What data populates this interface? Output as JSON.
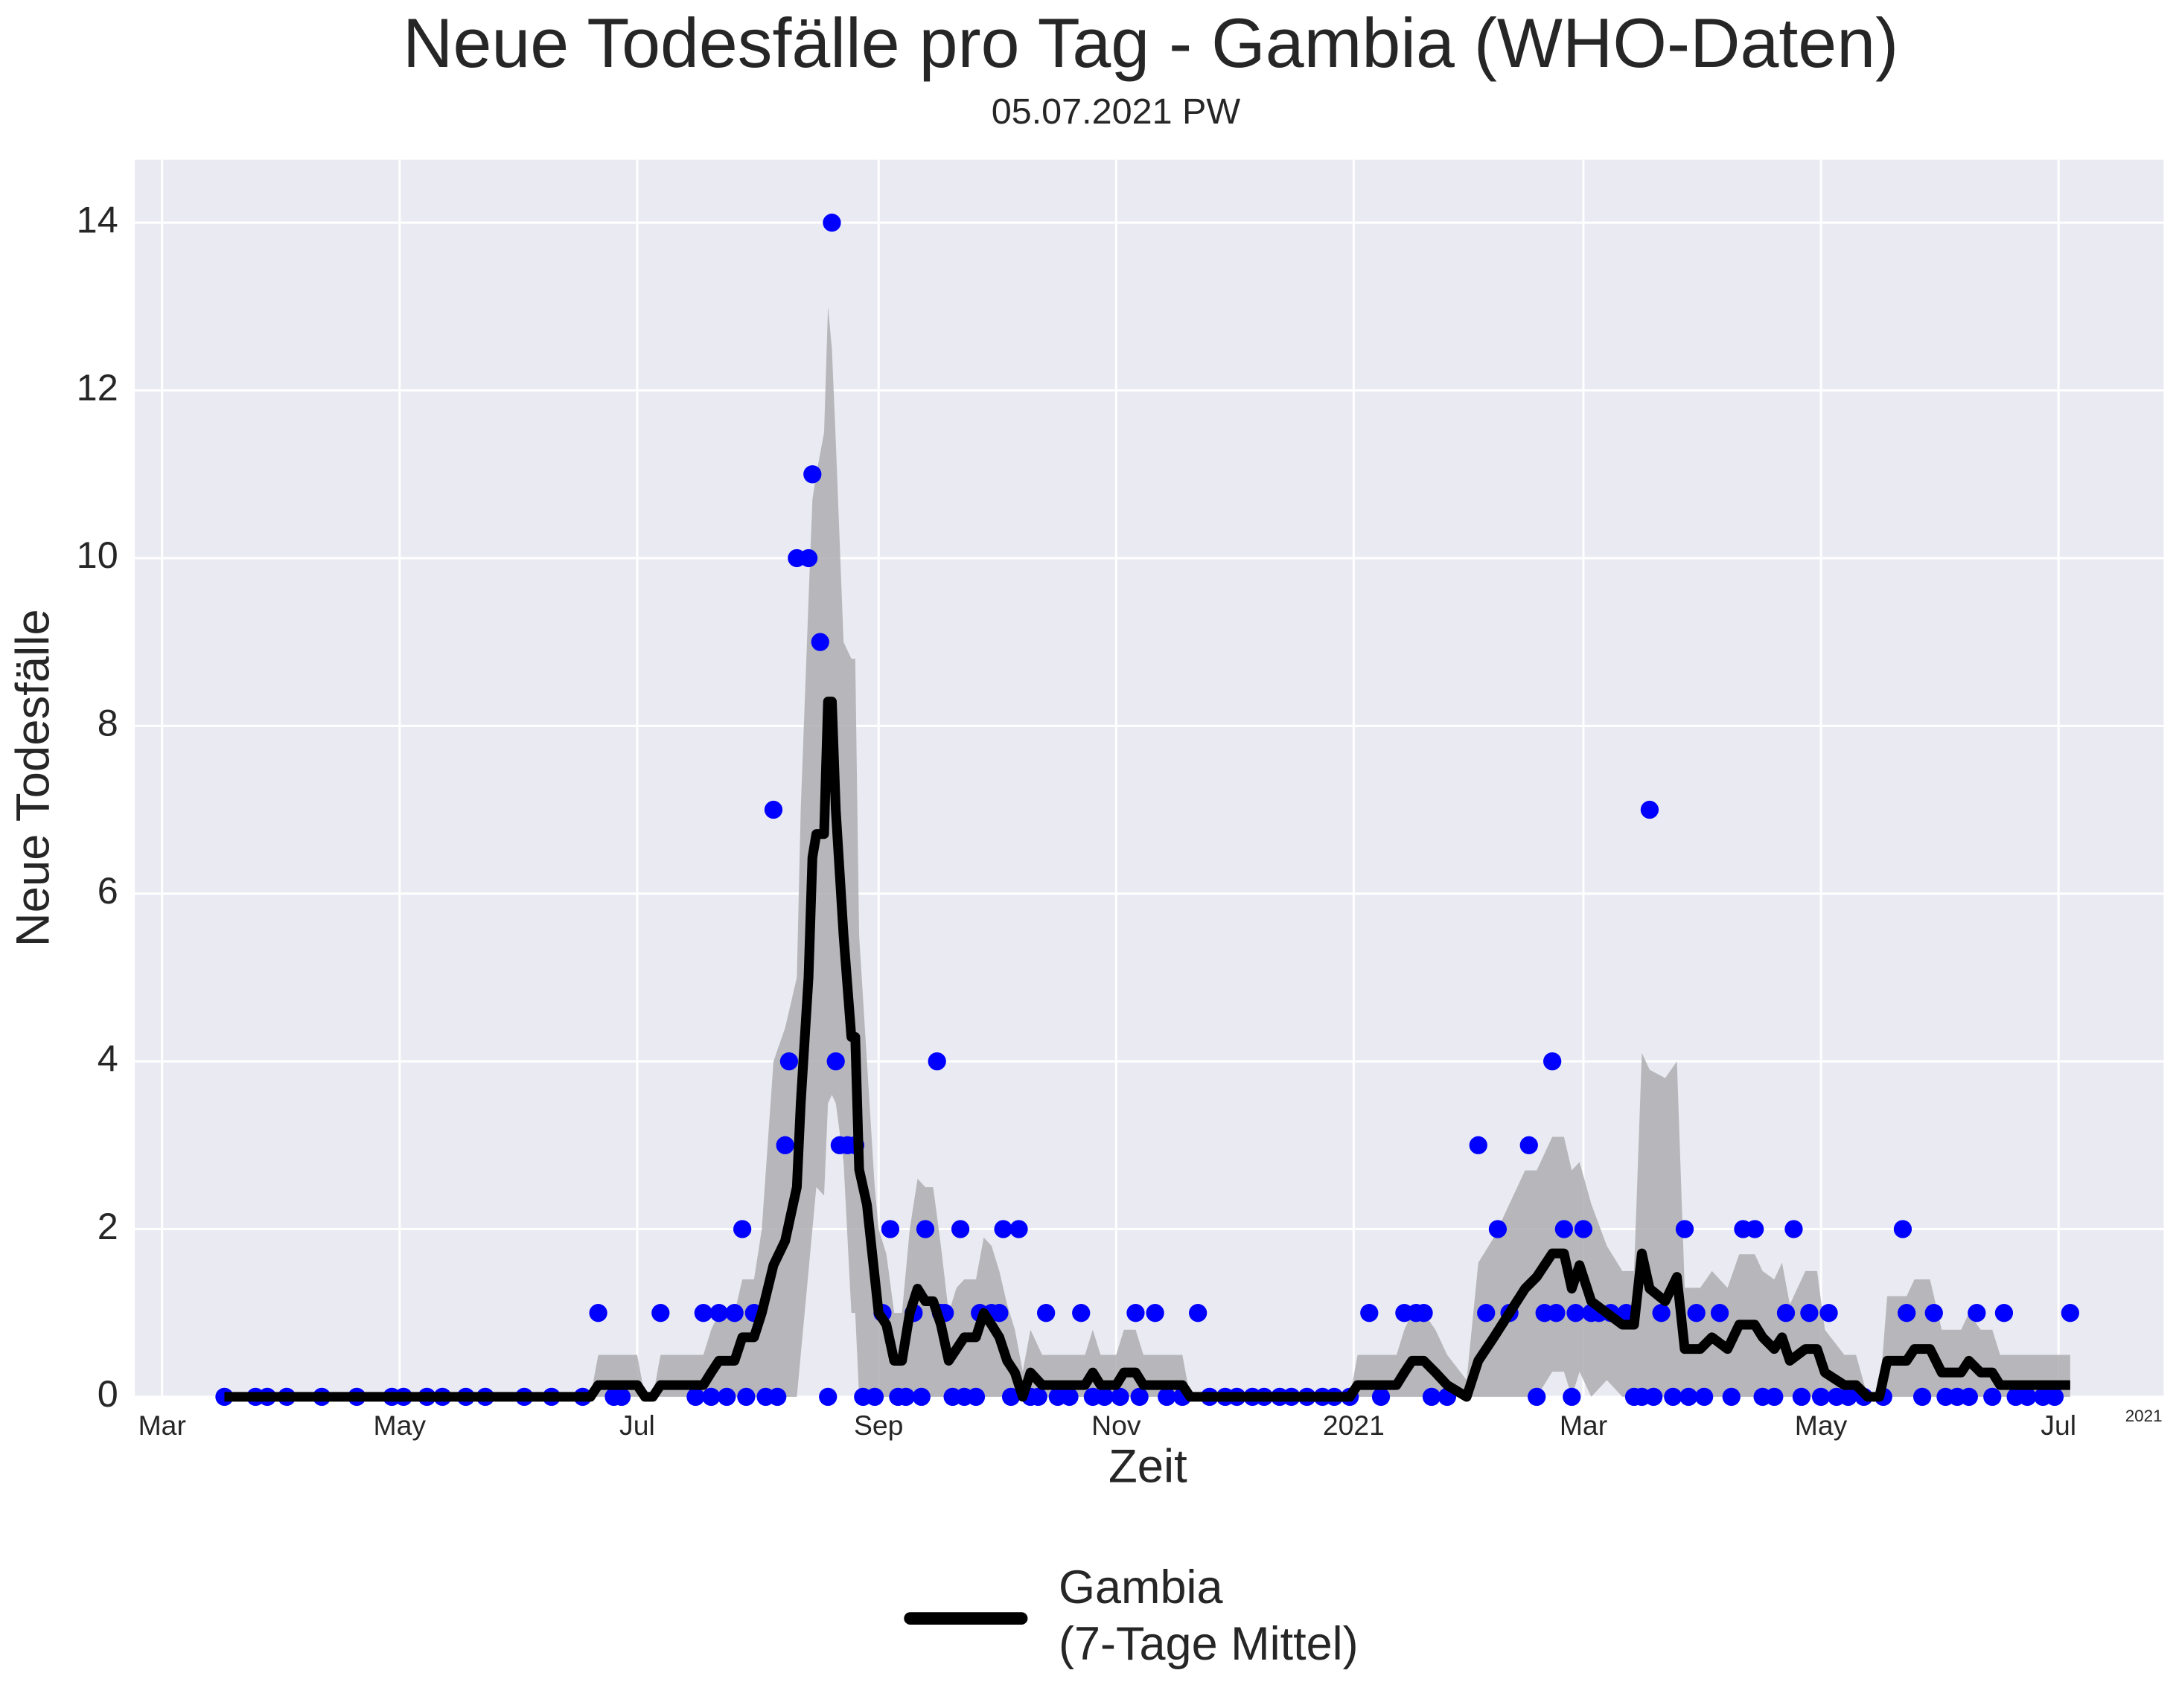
{
  "chart_data": {
    "type": "line",
    "title": "Neue Todesfälle pro Tag - Gambia (WHO-Daten)",
    "subtitle": "05.07.2021 PW",
    "x_label": "Zeit",
    "y_label": "Neue Todesfälle",
    "x_offset_label": "2021",
    "xlim": [
      -7,
      514
    ],
    "xticks": [
      {
        "value": 0,
        "label": "Mar"
      },
      {
        "value": 61,
        "label": "May"
      },
      {
        "value": 122,
        "label": "Jul"
      },
      {
        "value": 184,
        "label": "Sep"
      },
      {
        "value": 245,
        "label": "Nov"
      },
      {
        "value": 306,
        "label": "2021"
      },
      {
        "value": 365,
        "label": "Mar"
      },
      {
        "value": 426,
        "label": "May"
      },
      {
        "value": 487,
        "label": "Jul"
      }
    ],
    "ylim": [
      0,
      14.75
    ],
    "yticks": [
      0,
      2,
      4,
      6,
      8,
      10,
      12,
      14
    ],
    "grid": true,
    "background": "#eaeaf2",
    "legend": "bottom",
    "points": {
      "type": "scatter",
      "color": "#0000ff",
      "x": [
        16,
        24,
        27,
        32,
        41,
        50,
        59,
        62,
        68,
        72,
        78,
        83,
        93,
        100,
        108,
        112,
        116,
        118,
        128,
        137,
        139,
        141,
        143,
        145,
        147,
        149,
        150,
        152,
        155,
        157,
        158,
        160,
        161,
        163,
        166,
        167,
        169,
        171,
        172,
        173,
        174,
        176,
        178,
        180,
        183,
        185,
        187,
        189,
        191,
        193,
        195,
        196,
        199,
        200,
        201,
        203,
        205,
        206,
        209,
        210,
        213,
        215,
        216,
        218,
        220,
        223,
        225,
        227,
        230,
        233,
        236,
        239,
        242,
        246,
        250,
        251,
        255,
        258,
        262,
        266,
        269,
        273,
        276,
        280,
        283,
        287,
        290,
        294,
        298,
        301,
        305,
        310,
        313,
        319,
        322,
        324,
        326,
        330,
        338,
        340,
        343,
        346,
        351,
        353,
        355,
        357,
        358,
        360,
        362,
        363,
        365,
        367,
        369,
        372,
        376,
        378,
        380,
        382,
        383,
        385,
        388,
        391,
        392,
        394,
        396,
        400,
        403,
        406,
        409,
        411,
        414,
        417,
        419,
        421,
        423,
        426,
        428,
        430,
        433,
        437,
        442,
        447,
        448,
        452,
        455,
        458,
        461,
        464,
        466,
        470,
        473,
        476,
        479,
        483,
        486,
        490
      ],
      "values": [
        0,
        0,
        0,
        0,
        0,
        0,
        0,
        0,
        0,
        0,
        0,
        0,
        0,
        0,
        0,
        1,
        0,
        0,
        1,
        0,
        1,
        0,
        1,
        0,
        1,
        2,
        0,
        1,
        0,
        7,
        0,
        3,
        4,
        10,
        10,
        11,
        9,
        0,
        14,
        4,
        3,
        3,
        3,
        0,
        0,
        1,
        2,
        0,
        0,
        1,
        0,
        2,
        4,
        1,
        1,
        0,
        2,
        0,
        0,
        1,
        1,
        1,
        2,
        0,
        2,
        0,
        0,
        1,
        0,
        0,
        1,
        0,
        0,
        0,
        1,
        0,
        1,
        0,
        0,
        1,
        0,
        0,
        0,
        0,
        0,
        0,
        0,
        0,
        0,
        0,
        0,
        1,
        0,
        1,
        1,
        1,
        0,
        0,
        3,
        1,
        2,
        1,
        3,
        0,
        1,
        4,
        1,
        2,
        0,
        1,
        2,
        1,
        1,
        1,
        1,
        0,
        0,
        7,
        0,
        1,
        0,
        2,
        0,
        1,
        0,
        1,
        0,
        2,
        2,
        0,
        0,
        1,
        2,
        0,
        1,
        0,
        1,
        0,
        0,
        0,
        0,
        2,
        1,
        0,
        1,
        0,
        0,
        0,
        1,
        0,
        1,
        0,
        0,
        0,
        0,
        1
      ]
    },
    "series": [
      {
        "name": "Gambia\n(7-Tage Mittel)",
        "type": "line",
        "color": "#000000",
        "band_color": "#a9a9ad",
        "x": [
          16,
          110,
          112,
          122,
          124,
          126,
          128,
          139,
          141,
          143,
          147,
          149,
          152,
          154,
          157,
          160,
          163,
          164,
          166,
          167,
          168,
          170,
          171,
          172,
          173,
          175,
          177,
          178,
          179,
          181,
          183,
          184,
          186,
          188,
          190,
          192,
          194,
          196,
          198,
          200,
          202,
          204,
          206,
          209,
          211,
          213,
          215,
          217,
          219,
          221,
          223,
          226,
          237,
          239,
          241,
          245,
          247,
          250,
          252,
          262,
          264,
          305,
          307,
          317,
          319,
          321,
          324,
          327,
          330,
          335,
          338,
          342,
          346,
          350,
          353,
          357,
          360,
          362,
          364,
          367,
          371,
          375,
          378,
          380,
          382,
          386,
          389,
          391,
          395,
          398,
          402,
          405,
          409,
          411,
          414,
          416,
          418,
          422,
          425,
          427,
          432,
          435,
          438,
          441,
          443,
          448,
          450,
          454,
          457,
          462,
          464,
          467,
          470,
          472,
          490
        ],
        "values": [
          0,
          0,
          0.14,
          0.14,
          0,
          0,
          0.14,
          0.14,
          0.29,
          0.43,
          0.43,
          0.71,
          0.71,
          1.0,
          1.57,
          1.86,
          2.5,
          3.5,
          5.0,
          6.43,
          6.71,
          6.71,
          8.29,
          8.29,
          7.0,
          5.5,
          4.29,
          4.29,
          2.71,
          2.29,
          1.43,
          1.0,
          0.86,
          0.43,
          0.43,
          1.0,
          1.29,
          1.14,
          1.14,
          0.86,
          0.43,
          0.57,
          0.71,
          0.71,
          1.0,
          0.86,
          0.71,
          0.43,
          0.29,
          0,
          0.29,
          0.14,
          0.14,
          0.29,
          0.14,
          0.14,
          0.29,
          0.29,
          0.14,
          0.14,
          0,
          0,
          0.14,
          0.14,
          0.29,
          0.43,
          0.43,
          0.29,
          0.14,
          0,
          0.43,
          0.71,
          1.0,
          1.29,
          1.43,
          1.71,
          1.71,
          1.29,
          1.57,
          1.14,
          1.0,
          0.86,
          0.86,
          1.71,
          1.29,
          1.14,
          1.43,
          0.57,
          0.57,
          0.71,
          0.57,
          0.86,
          0.86,
          0.71,
          0.57,
          0.71,
          0.43,
          0.57,
          0.57,
          0.29,
          0.14,
          0.14,
          0,
          0,
          0.43,
          0.43,
          0.57,
          0.57,
          0.29,
          0.29,
          0.43,
          0.29,
          0.29,
          0.14,
          0.14
        ],
        "band_lower": [
          0,
          0,
          0,
          0,
          0,
          0,
          0,
          0,
          0,
          0,
          0,
          0,
          0,
          0,
          0,
          0,
          0,
          0.5,
          1.5,
          2,
          2.5,
          2.4,
          3.5,
          3.6,
          3.5,
          2.8,
          1,
          1,
          0,
          0,
          0,
          0,
          0,
          0,
          0,
          0,
          0,
          0,
          0,
          0,
          0,
          0,
          0,
          0,
          0,
          0,
          0,
          0,
          0,
          0,
          0,
          0,
          0,
          0,
          0,
          0,
          0,
          0,
          0,
          0,
          0,
          0,
          0,
          0,
          0,
          0,
          0,
          0,
          0,
          0,
          0,
          0,
          0,
          0,
          0,
          0.3,
          0.3,
          0,
          0.3,
          0,
          0.2,
          0,
          0,
          0,
          0,
          0,
          0,
          0,
          0,
          0,
          0,
          0,
          0,
          0,
          0,
          0,
          0,
          0,
          0,
          0,
          0,
          0,
          0,
          0,
          0,
          0,
          0,
          0,
          0,
          0,
          0,
          0,
          0,
          0,
          0
        ],
        "band_upper": [
          0,
          0,
          0.5,
          0.5,
          0,
          0,
          0.5,
          0.5,
          0.8,
          1,
          1,
          1.4,
          1.4,
          2,
          4,
          4.4,
          5,
          7,
          9.5,
          10.7,
          11,
          11.5,
          13,
          12.5,
          11.4,
          9,
          8.8,
          8.8,
          5.5,
          4,
          2.5,
          2,
          1.7,
          1,
          1,
          2,
          2.6,
          2.5,
          2.5,
          1.8,
          1,
          1.3,
          1.4,
          1.4,
          1.9,
          1.8,
          1.5,
          1.1,
          0.8,
          0.3,
          0.8,
          0.5,
          0.5,
          0.8,
          0.5,
          0.5,
          0.8,
          0.8,
          0.5,
          0.5,
          0,
          0,
          0.5,
          0.5,
          0.8,
          1,
          1,
          0.8,
          0.5,
          0.2,
          1.6,
          1.9,
          2.3,
          2.7,
          2.7,
          3.1,
          3.1,
          2.7,
          2.8,
          2.3,
          1.8,
          1.5,
          1.5,
          4.1,
          3.9,
          3.8,
          4,
          1.3,
          1.3,
          1.5,
          1.3,
          1.7,
          1.7,
          1.5,
          1.4,
          1.6,
          1.1,
          1.5,
          1.5,
          0.8,
          0.5,
          0.5,
          0,
          0,
          1.2,
          1.2,
          1.4,
          1.4,
          0.8,
          0.8,
          1,
          0.8,
          0.8,
          0.5,
          0.5
        ]
      }
    ]
  }
}
